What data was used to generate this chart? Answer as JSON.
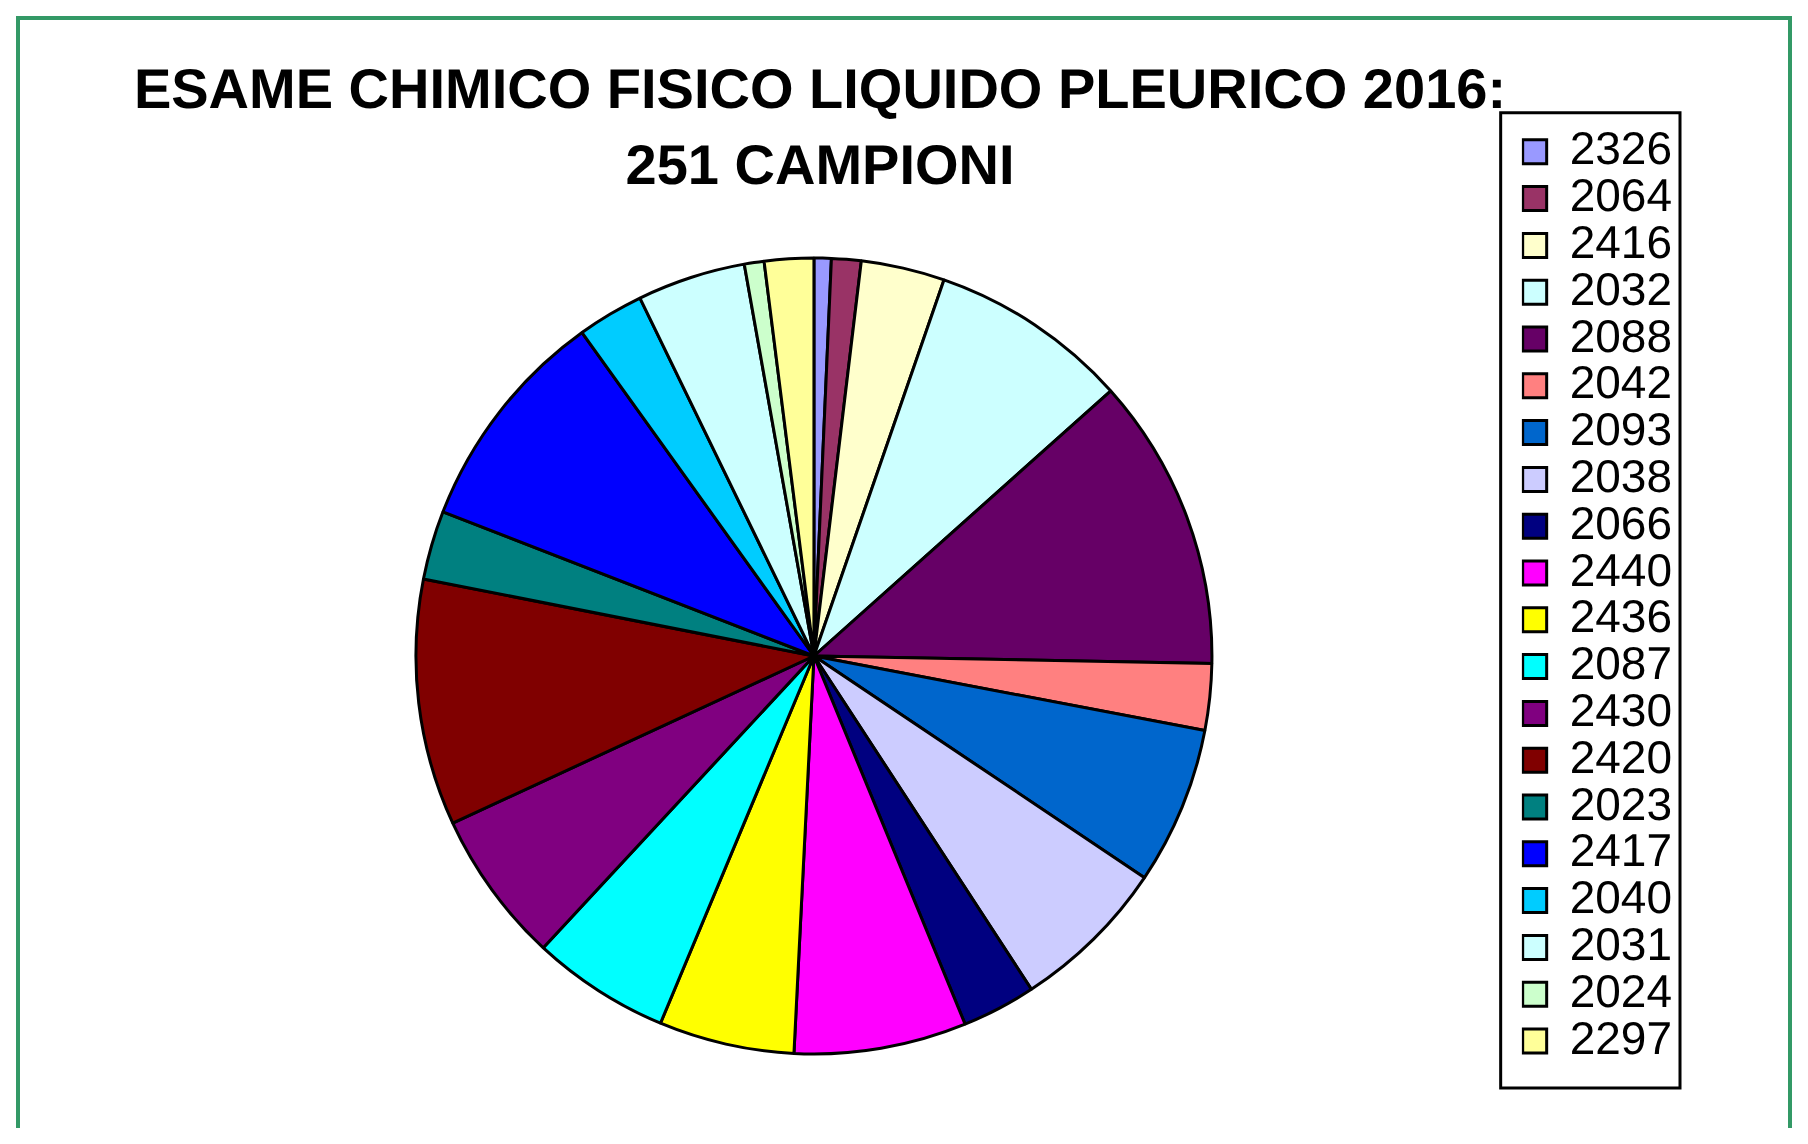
{
  "chart_data": {
    "type": "pie",
    "title": "ESAME CHIMICO FISICO LIQUIDO PLEURICO 2016: 251 CAMPIONI",
    "categories": [
      "2326",
      "2064",
      "2416",
      "2032",
      "2088",
      "2042",
      "2093",
      "2038",
      "2066",
      "2440",
      "2436",
      "2087",
      "2430",
      "2420",
      "2023",
      "2417",
      "2040",
      "2031",
      "2024",
      "2297"
    ],
    "values": [
      0.7,
      1.2,
      3.4,
      8.1,
      11.9,
      2.7,
      6.4,
      6.4,
      3.0,
      7.0,
      5.5,
      5.6,
      6.2,
      10.0,
      2.8,
      9.2,
      2.7,
      4.4,
      0.8,
      2.0
    ],
    "colors": [
      "#9999ff",
      "#993366",
      "#ffffcc",
      "#ccffff",
      "#660066",
      "#ff8080",
      "#0066cc",
      "#ccccff",
      "#000080",
      "#ff00ff",
      "#ffff00",
      "#00ffff",
      "#800080",
      "#800000",
      "#008080",
      "#0000ff",
      "#00ccff",
      "#ccffff",
      "#ccffcc",
      "#ffff99"
    ],
    "legend": "right"
  }
}
